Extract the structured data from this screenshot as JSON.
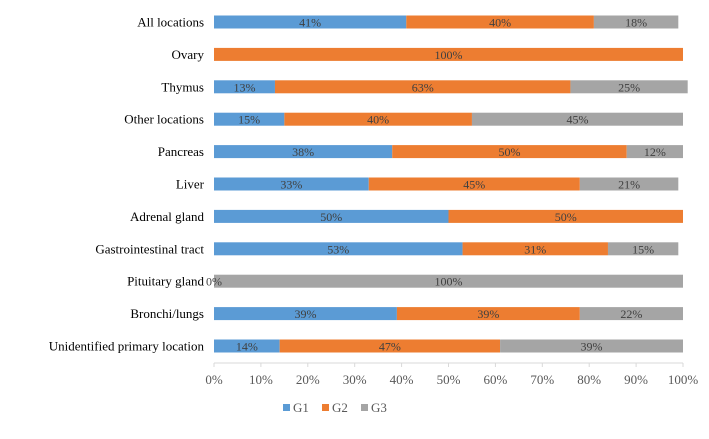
{
  "chart_data": {
    "type": "bar",
    "orientation": "horizontal",
    "stacked": "percent",
    "categories": [
      "All locations",
      "Ovary",
      "Thymus",
      "Other locations",
      "Pancreas",
      "Liver",
      "Adrenal gland",
      "Gastrointestinal tract",
      "Pituitary gland",
      "Bronchi/lungs",
      "Unidentified primary location"
    ],
    "series": [
      {
        "name": "G1",
        "color": "#5B9BD5",
        "values": [
          41,
          0,
          13,
          15,
          38,
          33,
          50,
          53,
          0,
          39,
          14
        ],
        "labels": [
          "41%",
          "",
          "13%",
          "15%",
          "38%",
          "33%",
          "50%",
          "53%",
          "0%",
          "39%",
          "14%"
        ]
      },
      {
        "name": "G2",
        "color": "#ED7D31",
        "values": [
          40,
          100,
          63,
          40,
          50,
          45,
          50,
          31,
          0,
          39,
          47
        ],
        "labels": [
          "40%",
          "100%",
          "63%",
          "40%",
          "50%",
          "45%",
          "50%",
          "31%",
          "",
          "39%",
          "47%"
        ]
      },
      {
        "name": "G3",
        "color": "#A5A5A5",
        "values": [
          18,
          0,
          25,
          45,
          12,
          21,
          0,
          15,
          100,
          22,
          39
        ],
        "labels": [
          "18%",
          "",
          "25%",
          "45%",
          "12%",
          "21%",
          "",
          "15%",
          "100%",
          "22%",
          "39%"
        ]
      }
    ],
    "xlim": [
      0,
      100
    ],
    "xticks": [
      "0%",
      "10%",
      "20%",
      "30%",
      "40%",
      "50%",
      "60%",
      "70%",
      "80%",
      "90%",
      "100%"
    ],
    "title": "",
    "xlabel": "",
    "ylabel": "",
    "grid": false,
    "legend_position": "bottom"
  }
}
